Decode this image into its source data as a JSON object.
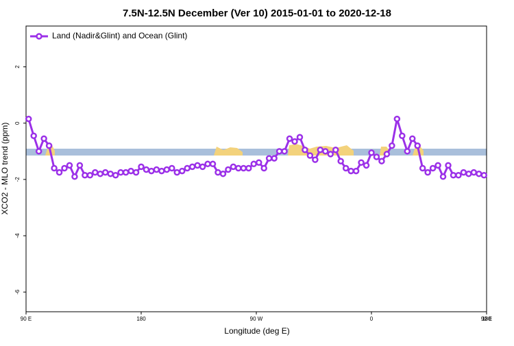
{
  "chart_data": {
    "type": "line",
    "title": "7.5N-12.5N December (Ver 10)   2015-01-01 to 2020-12-18",
    "x_label": "Longitude (deg E)",
    "y_label": "XCO2 - MLO trend (ppm)",
    "legend": "topleft",
    "xlim": [
      90,
      450
    ],
    "ylim": [
      -6.7,
      3.45
    ],
    "xticks": [
      {
        "value": 90,
        "label": "90 E"
      },
      180,
      {
        "value": 270,
        "label": "90 W"
      },
      {
        "value": 360,
        "label": "0"
      },
      {
        "value": 450,
        "label": "90 E"
      },
      {
        "value": 540,
        "label": "180"
      }
    ],
    "yticks": [
      -6,
      -4,
      -2,
      0,
      2
    ],
    "x": [
      92,
      96,
      100,
      104,
      108,
      112,
      116,
      120,
      124,
      128,
      132,
      136,
      140,
      144,
      148,
      152,
      156,
      160,
      164,
      168,
      172,
      176,
      180,
      184,
      188,
      192,
      196,
      200,
      204,
      208,
      212,
      216,
      220,
      224,
      228,
      232,
      236,
      240,
      244,
      248,
      252,
      256,
      260,
      264,
      268,
      272,
      276,
      280,
      284,
      288,
      292,
      296,
      300,
      304,
      308,
      312,
      316,
      320,
      324,
      328,
      332,
      336,
      340,
      344,
      348,
      352,
      356,
      360,
      364,
      368,
      372,
      376,
      380,
      384,
      388,
      392,
      396,
      400,
      404,
      408,
      412,
      416,
      420,
      424,
      428,
      432,
      436,
      440,
      444,
      448
    ],
    "series": [
      {
        "name": "Land (Nadir&Glint) and Ocean (Glint)",
        "color": "#9b30e8",
        "values": [
          0.15,
          -0.45,
          -1.0,
          -0.55,
          -0.8,
          -1.6,
          -1.75,
          -1.6,
          -1.5,
          -1.9,
          -1.5,
          -1.85,
          -1.85,
          -1.75,
          -1.8,
          -1.75,
          -1.8,
          -1.85,
          -1.75,
          -1.75,
          -1.7,
          -1.75,
          -1.55,
          -1.65,
          -1.7,
          -1.65,
          -1.7,
          -1.65,
          -1.6,
          -1.75,
          -1.7,
          -1.6,
          -1.55,
          -1.5,
          -1.55,
          -1.45,
          -1.45,
          -1.75,
          -1.8,
          -1.65,
          -1.55,
          -1.6,
          -1.6,
          -1.6,
          -1.45,
          -1.4,
          -1.6,
          -1.25,
          -1.25,
          -1.0,
          -1.0,
          -0.55,
          -0.65,
          -0.5,
          -0.95,
          -1.15,
          -1.3,
          -0.95,
          -1.0,
          -1.1,
          -0.95,
          -1.35,
          -1.6,
          -1.7,
          -1.7,
          -1.4,
          -1.5,
          -1.05,
          -1.2,
          -1.35,
          -1.1,
          -0.8,
          0.15,
          -0.45,
          -1.0,
          -0.55,
          -0.8,
          -1.6,
          -1.75,
          -1.6,
          -1.5,
          -1.9,
          -1.5,
          -1.85,
          -1.85,
          -1.75,
          -1.8,
          -1.75,
          -1.8,
          -1.85
        ]
      }
    ]
  }
}
